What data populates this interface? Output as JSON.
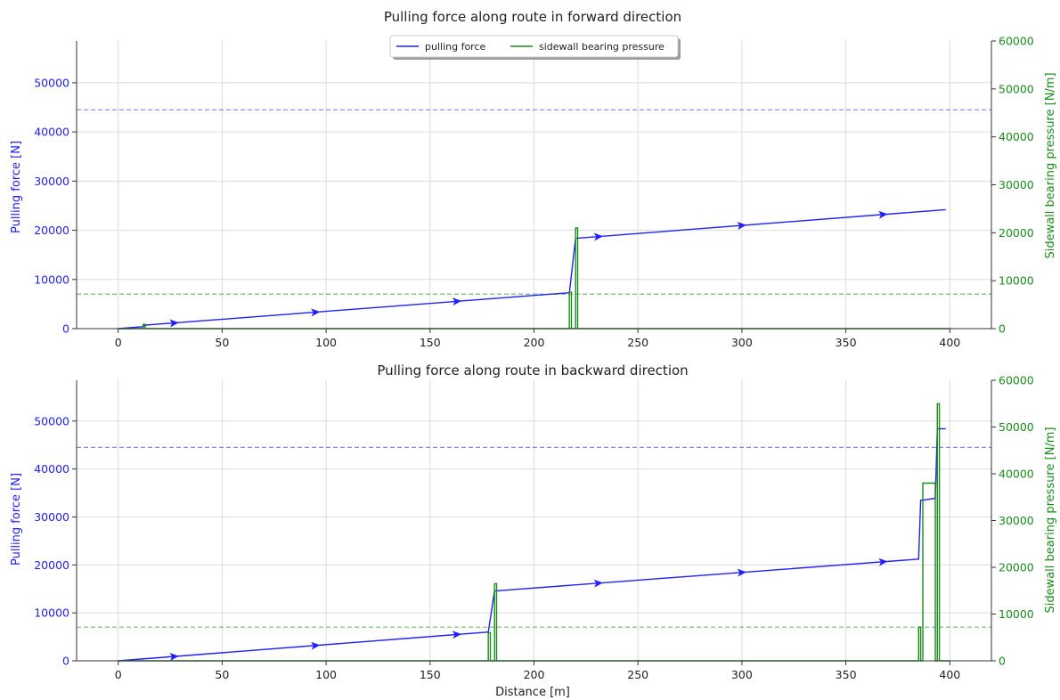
{
  "chart_data": [
    {
      "type": "line",
      "title": "Pulling force along route in forward direction",
      "xlabel": "",
      "ylabel": "Pulling force [N]",
      "ylabel_right": "Sidewall bearing pressure [N/m]",
      "xlim": [
        -20,
        420
      ],
      "ylim": [
        0,
        58500
      ],
      "ylim_right": [
        0,
        60000
      ],
      "xticks": [
        0,
        50,
        100,
        150,
        200,
        250,
        300,
        350,
        400
      ],
      "yticks": [
        0,
        10000,
        20000,
        30000,
        40000,
        50000
      ],
      "yticks_right": [
        0,
        10000,
        20000,
        30000,
        40000,
        50000,
        60000
      ],
      "grid": true,
      "legend": {
        "placement": "top-center",
        "entries": [
          "pulling force",
          "sidewall bearing pressure"
        ]
      },
      "colors": {
        "force": "#1f1fff",
        "pressure": "#1a8c1a"
      },
      "force_limit": 44500,
      "pressure_limit": 7200,
      "series": [
        {
          "name": "pulling force",
          "axis": "left",
          "x": [
            0,
            12,
            13,
            217,
            220,
            221,
            398
          ],
          "y": [
            0,
            400,
            700,
            7300,
            18400,
            18400,
            24200
          ]
        },
        {
          "name": "sidewall bearing pressure",
          "axis": "right",
          "x": [
            0,
            12,
            12,
            13,
            13,
            217,
            217,
            218,
            218,
            220,
            220,
            221,
            221,
            400
          ],
          "y": [
            0,
            0,
            900,
            900,
            0,
            0,
            7600,
            7600,
            0,
            0,
            21000,
            21000,
            0,
            0
          ]
        }
      ],
      "arrows_at": [
        27,
        95,
        163,
        231,
        300,
        368
      ]
    },
    {
      "type": "line",
      "title": "Pulling force along route in backward direction",
      "xlabel": "Distance [m]",
      "ylabel": "Pulling force [N]",
      "ylabel_right": "Sidewall bearing pressure [N/m]",
      "xlim": [
        -20,
        420
      ],
      "ylim": [
        0,
        58500
      ],
      "ylim_right": [
        0,
        60000
      ],
      "xticks": [
        0,
        50,
        100,
        150,
        200,
        250,
        300,
        350,
        400
      ],
      "yticks": [
        0,
        10000,
        20000,
        30000,
        40000,
        50000
      ],
      "yticks_right": [
        0,
        10000,
        20000,
        30000,
        40000,
        50000,
        60000
      ],
      "grid": true,
      "colors": {
        "force": "#1f1fff",
        "pressure": "#1a8c1a"
      },
      "force_limit": 44500,
      "pressure_limit": 7200,
      "series": [
        {
          "name": "pulling force",
          "axis": "left",
          "x": [
            0,
            178,
            181,
            182,
            385,
            386,
            387,
            393,
            394,
            395,
            398
          ],
          "y": [
            0,
            6000,
            14600,
            14600,
            21200,
            33500,
            33500,
            33900,
            48300,
            48400,
            48400
          ]
        },
        {
          "name": "sidewall bearing pressure",
          "axis": "right",
          "x": [
            0,
            178,
            178,
            179,
            179,
            181,
            181,
            182,
            182,
            385,
            385,
            386,
            386,
            387,
            387,
            393,
            393,
            394,
            394,
            395,
            395,
            400
          ],
          "y": [
            0,
            0,
            6000,
            6000,
            0,
            0,
            16500,
            16500,
            0,
            0,
            7200,
            7200,
            0,
            0,
            38000,
            38000,
            0,
            0,
            55000,
            55000,
            0,
            0
          ]
        }
      ],
      "arrows_at": [
        27,
        95,
        163,
        231,
        300,
        368
      ]
    }
  ]
}
